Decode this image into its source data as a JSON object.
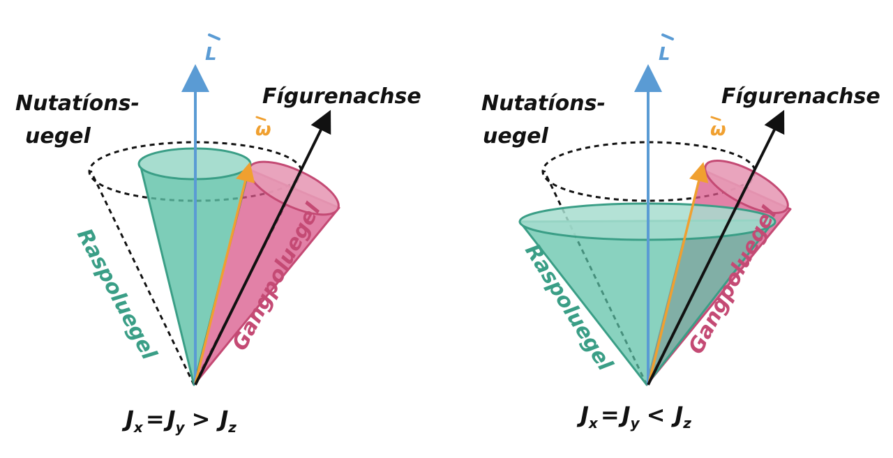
{
  "colors": {
    "angular_momentum": "#5a9bd4",
    "omega": "#f0a030",
    "raspolkegel": "#5cc1a6",
    "gangpolkegel": "#d8578a",
    "nutation": "#111111"
  },
  "left_panel": {
    "nutation_label_line1": "Nutatíons-",
    "nutation_label_line2": "uegel",
    "figure_axis_label": "Fígurenachse",
    "angular_momentum_label": "L",
    "omega_label": "ω",
    "raspol_label": "Raspoluegel",
    "gangpol_label": "Gangpoluegel",
    "condition": {
      "j1": "J",
      "s1": "x",
      "eq": "=",
      "j2": "J",
      "s2": "y",
      "rel": ">",
      "j3": "J",
      "s3": "z"
    }
  },
  "right_panel": {
    "nutation_label_line1": "Nutatíons-",
    "nutation_label_line2": "uegel",
    "figure_axis_label": "Fígurenachse",
    "angular_momentum_label": "L",
    "omega_label": "ω",
    "raspol_label": "Raspoluegel",
    "gangpol_label": "Gangpoluegel",
    "condition": {
      "j1": "J",
      "s1": "x",
      "eq": "=",
      "j2": "J",
      "s2": "y",
      "rel": "<",
      "j3": "J",
      "s3": "z"
    }
  }
}
